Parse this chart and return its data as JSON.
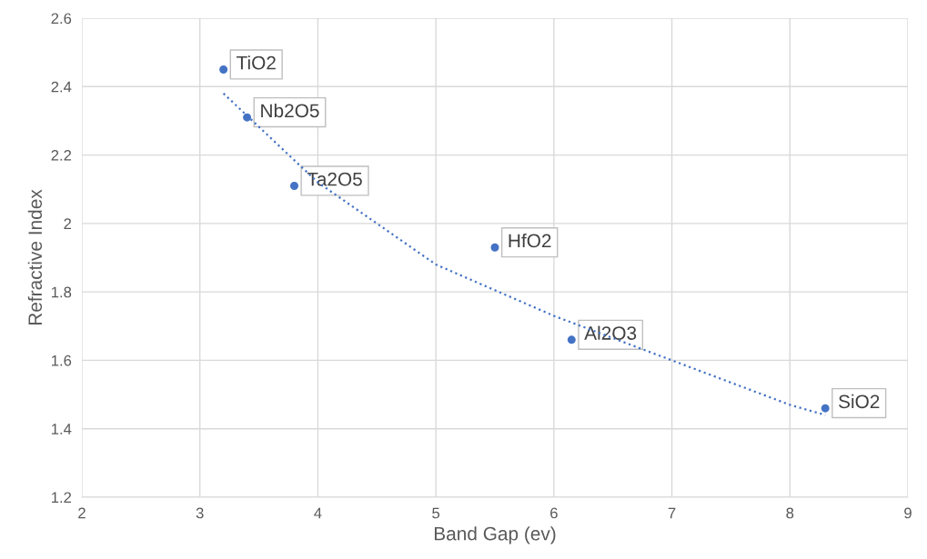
{
  "chart_data": {
    "type": "scatter",
    "xlabel": "Band Gap (ev)",
    "ylabel": "Refractive Index",
    "xlim": [
      2,
      9
    ],
    "xticks": [
      2,
      3,
      4,
      5,
      6,
      7,
      8,
      9
    ],
    "ylim": [
      1.2,
      2.6
    ],
    "yticks": [
      1.2,
      1.4,
      1.6,
      1.8,
      2,
      2.2,
      2.4,
      2.6
    ],
    "grid": true,
    "series": [
      {
        "marker": "circle",
        "color": "#4472c4",
        "x": [
          3.2,
          3.4,
          3.8,
          5.5,
          6.15,
          8.3
        ],
        "values": [
          2.45,
          2.31,
          2.11,
          1.93,
          1.66,
          1.46
        ]
      },
      {
        "type": "line",
        "color": "#4472c4",
        "line_style": "dotted",
        "marker": "none",
        "x": [
          3.2,
          4,
          5,
          6,
          7,
          8,
          8.3
        ],
        "values": [
          2.38,
          2.12,
          1.88,
          1.73,
          1.6,
          1.47,
          1.44
        ]
      }
    ],
    "annotations": [
      {
        "text": "TiO2",
        "x": 3.2,
        "y": 2.45
      },
      {
        "text": "Nb2O5",
        "x": 3.4,
        "y": 2.31
      },
      {
        "text": "Ta2O5",
        "x": 3.8,
        "y": 2.11
      },
      {
        "text": "HfO2",
        "x": 5.5,
        "y": 1.93
      },
      {
        "text": "Al2O3",
        "x": 6.15,
        "y": 1.66
      },
      {
        "text": "SiO2",
        "x": 8.3,
        "y": 1.46
      }
    ]
  }
}
